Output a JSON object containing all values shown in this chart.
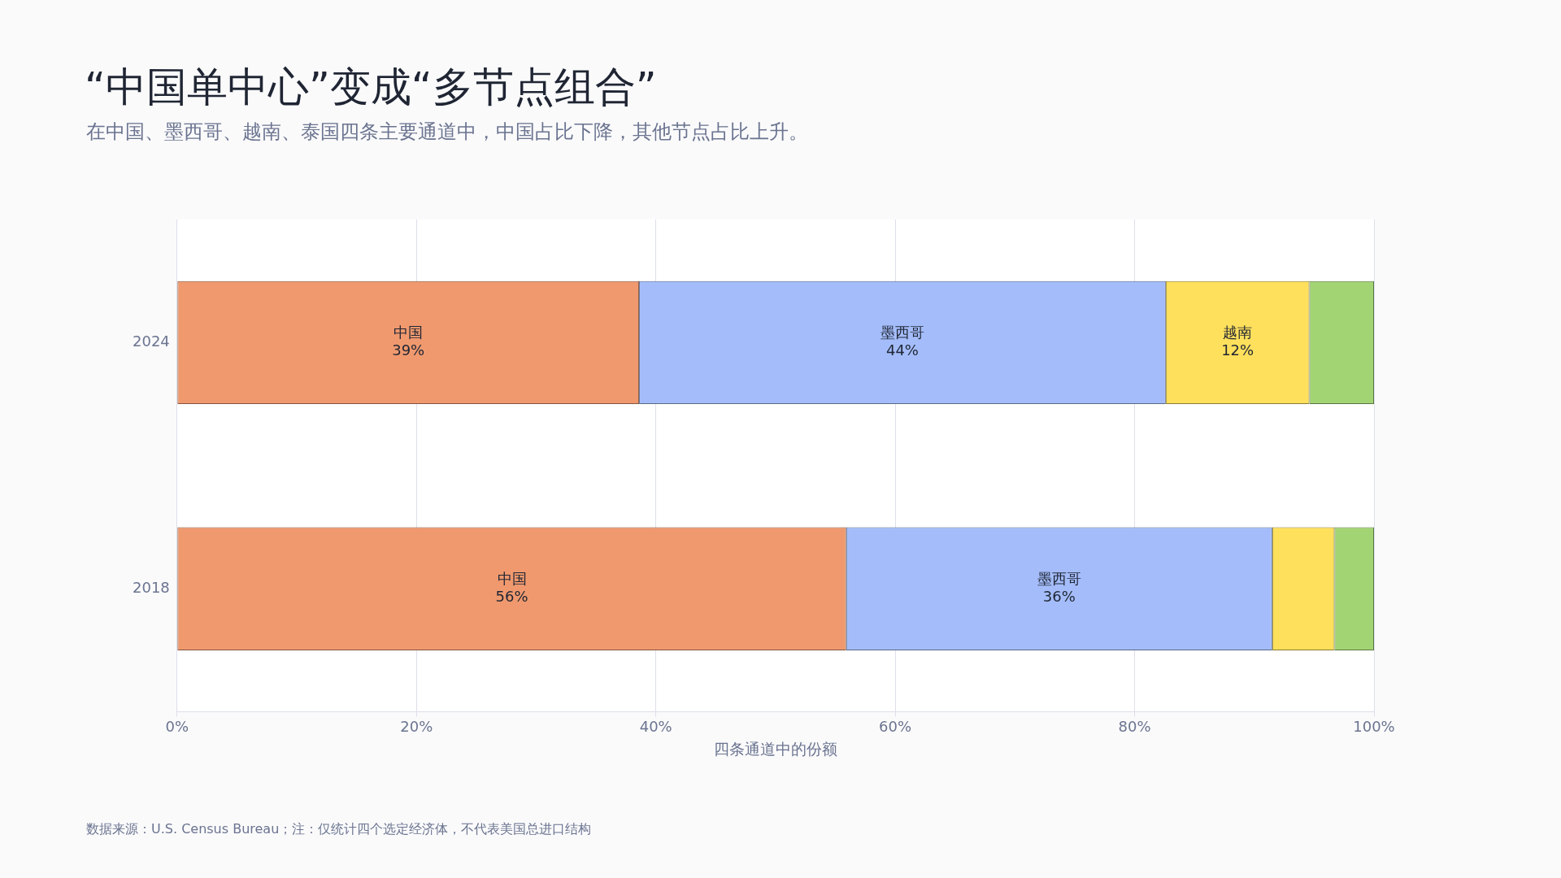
{
  "chart_data": {
    "type": "bar",
    "orientation": "horizontal",
    "stacked": true,
    "title": "“中国单中心”变成“多节点组合”",
    "subtitle": "在中国、墨西哥、越南、泰国四条主要通道中，中国占比下降，其他节点占比上升。",
    "xlabel": "四条通道中的份额",
    "annotations": [
      "数据来源：U.S. Census Bureau；注：仅统计四个选定经济体，不代表美国总进口结构"
    ],
    "categories": [
      "2024",
      "2018"
    ],
    "series": [
      {
        "name": "中国",
        "color": "#f0996e",
        "values": [
          38.6,
          55.9
        ],
        "value_labels": [
          "39%",
          "56%"
        ]
      },
      {
        "name": "墨西哥",
        "color": "#a4bdfa",
        "values": [
          44.0,
          35.6
        ],
        "value_labels": [
          "44%",
          "36%"
        ]
      },
      {
        "name": "越南",
        "color": "#ffe05c",
        "values": [
          12.0,
          5.2
        ],
        "value_labels": [
          "12%",
          null
        ]
      },
      {
        "color": "#a3d474",
        "values": [
          5.4,
          3.3
        ]
      }
    ],
    "xlim": [
      0,
      100
    ],
    "xticks": [
      {
        "value": 0,
        "label": "0%"
      },
      {
        "value": 20,
        "label": "20%"
      },
      {
        "value": 40,
        "label": "40%"
      },
      {
        "value": 60,
        "label": "60%"
      },
      {
        "value": 80,
        "label": "80%"
      },
      {
        "value": 100,
        "label": "100%"
      }
    ],
    "grid": "x",
    "legend": false
  }
}
